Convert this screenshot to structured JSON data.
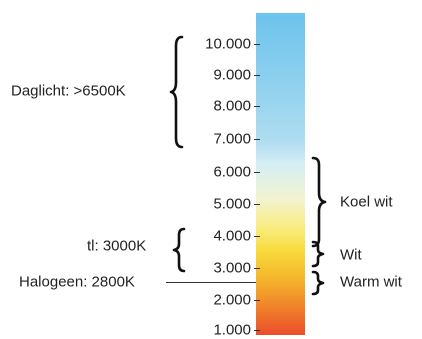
{
  "scale": {
    "ticks": [
      "10.000",
      "9.000",
      "8.000",
      "7.000",
      "6.000",
      "5.000",
      "4.000",
      "3.000",
      "2.000",
      "1.000"
    ],
    "gradient_colors": [
      "#6cc3ec",
      "#b0ddf0",
      "#d6eef5",
      "#f9ea73",
      "#f5b82c",
      "#eb4d2b"
    ]
  },
  "left_annotations": {
    "daglicht": "Daglicht: >6500K",
    "tl": "tl: 3000K",
    "halogeen": "Halogeen: 2800K"
  },
  "right_annotations": {
    "koel_wit": "Koel wit",
    "wit": "Wit",
    "warm_wit": "Warm wit"
  }
}
